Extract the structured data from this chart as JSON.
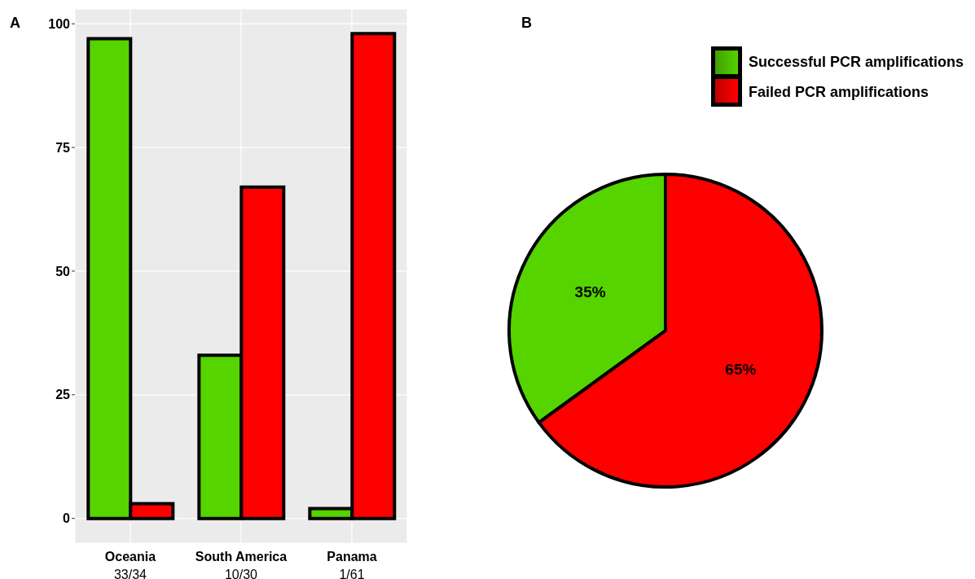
{
  "chart_data": [
    {
      "type": "bar",
      "title": "A",
      "categories": [
        "Oceania\n33/34",
        "South America\n10/30",
        "Panama\n1/61"
      ],
      "series": [
        {
          "color": "#55d400",
          "values": [
            97,
            33,
            2
          ]
        },
        {
          "color": "#ff0000",
          "values": [
            3,
            67,
            98
          ]
        }
      ],
      "ylim": [
        -5,
        103
      ],
      "yticks": [
        0,
        25,
        50,
        75,
        100
      ],
      "grid": true,
      "legend": false
    },
    {
      "type": "pie",
      "title": "B",
      "categories": [
        "Successful PCR amplifications",
        "Failed PCR amplifications"
      ],
      "values": [
        35,
        65
      ],
      "colors": [
        "#55d400",
        "#ff0000"
      ],
      "value_labels": [
        "35%",
        "65%"
      ],
      "legend": "top right"
    }
  ]
}
